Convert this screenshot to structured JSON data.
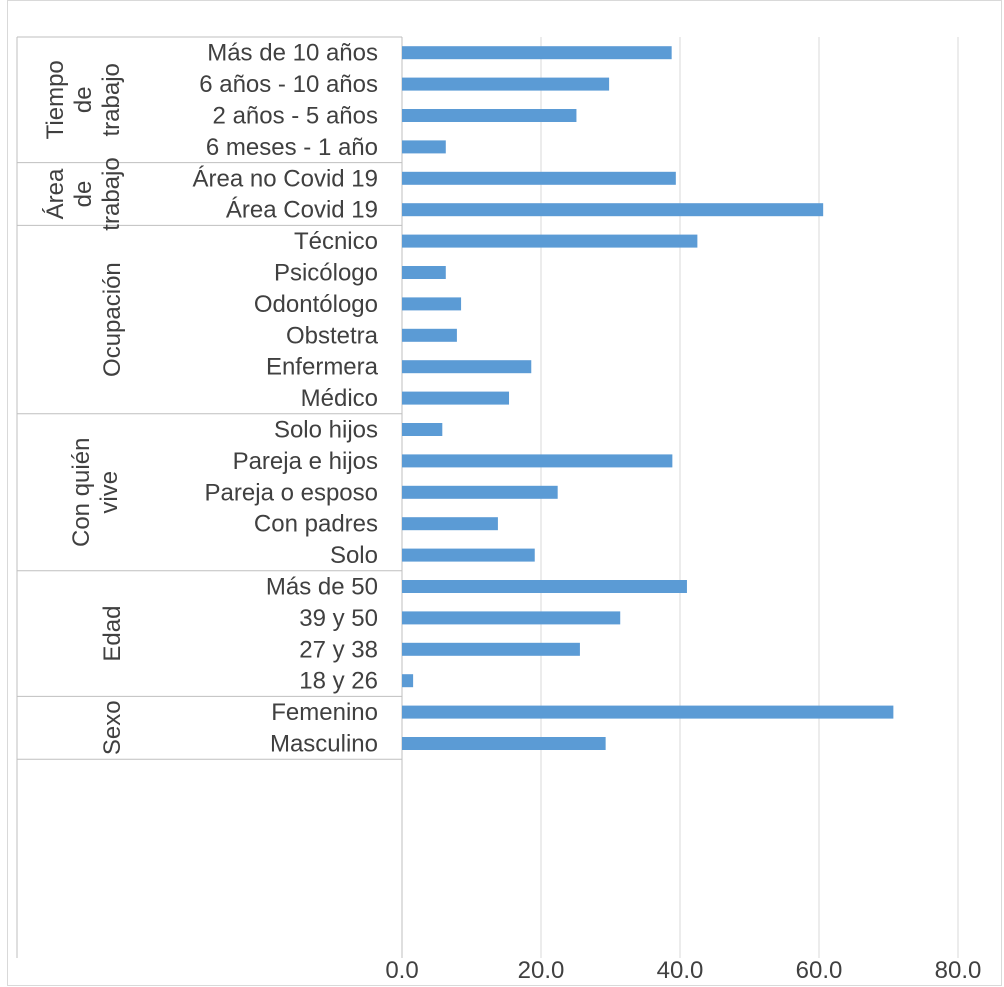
{
  "chart_data": {
    "type": "bar",
    "orientation": "horizontal",
    "xlim": [
      0,
      80
    ],
    "x_ticks": [
      "0.0",
      "20.0",
      "40.0",
      "60.0",
      "80.0"
    ],
    "grid": true,
    "bar_color": "#5b9bd5",
    "groups": [
      {
        "label_lines": [
          "Tiempo",
          "de",
          "trabajo"
        ],
        "items": [
          {
            "category": "Más de 10 años",
            "value": 38.8
          },
          {
            "category": "6 años - 10 años",
            "value": 29.8
          },
          {
            "category": "2 años - 5 años",
            "value": 25.1
          },
          {
            "category": "6 meses - 1 año",
            "value": 6.3
          }
        ]
      },
      {
        "label_lines": [
          "Área",
          "de",
          "trabajo"
        ],
        "items": [
          {
            "category": "Área no Covid 19",
            "value": 39.4
          },
          {
            "category": "Área Covid 19",
            "value": 60.6
          }
        ]
      },
      {
        "label_lines": [
          "Ocupación"
        ],
        "items": [
          {
            "category": "Técnico",
            "value": 42.5
          },
          {
            "category": "Psicólogo",
            "value": 6.3
          },
          {
            "category": "Odontólogo",
            "value": 8.5
          },
          {
            "category": "Obstetra",
            "value": 7.9
          },
          {
            "category": "Enfermera",
            "value": 18.6
          },
          {
            "category": "Médico",
            "value": 15.4
          }
        ]
      },
      {
        "label_lines": [
          "Con quién",
          "vive"
        ],
        "items": [
          {
            "category": "Solo hijos",
            "value": 5.8
          },
          {
            "category": "Pareja e hijos",
            "value": 38.9
          },
          {
            "category": "Pareja o esposo",
            "value": 22.4
          },
          {
            "category": "Con padres",
            "value": 13.8
          },
          {
            "category": "Solo",
            "value": 19.1
          }
        ]
      },
      {
        "label_lines": [
          "Edad"
        ],
        "items": [
          {
            "category": "Más de 50",
            "value": 41.0
          },
          {
            "category": "39 y 50",
            "value": 31.4
          },
          {
            "category": "27 y 38",
            "value": 25.6
          },
          {
            "category": "18 y 26",
            "value": 1.6
          }
        ]
      },
      {
        "label_lines": [
          "Sexo"
        ],
        "items": [
          {
            "category": "Femenino",
            "value": 70.7
          },
          {
            "category": "Masculino",
            "value": 29.3
          }
        ]
      }
    ]
  }
}
